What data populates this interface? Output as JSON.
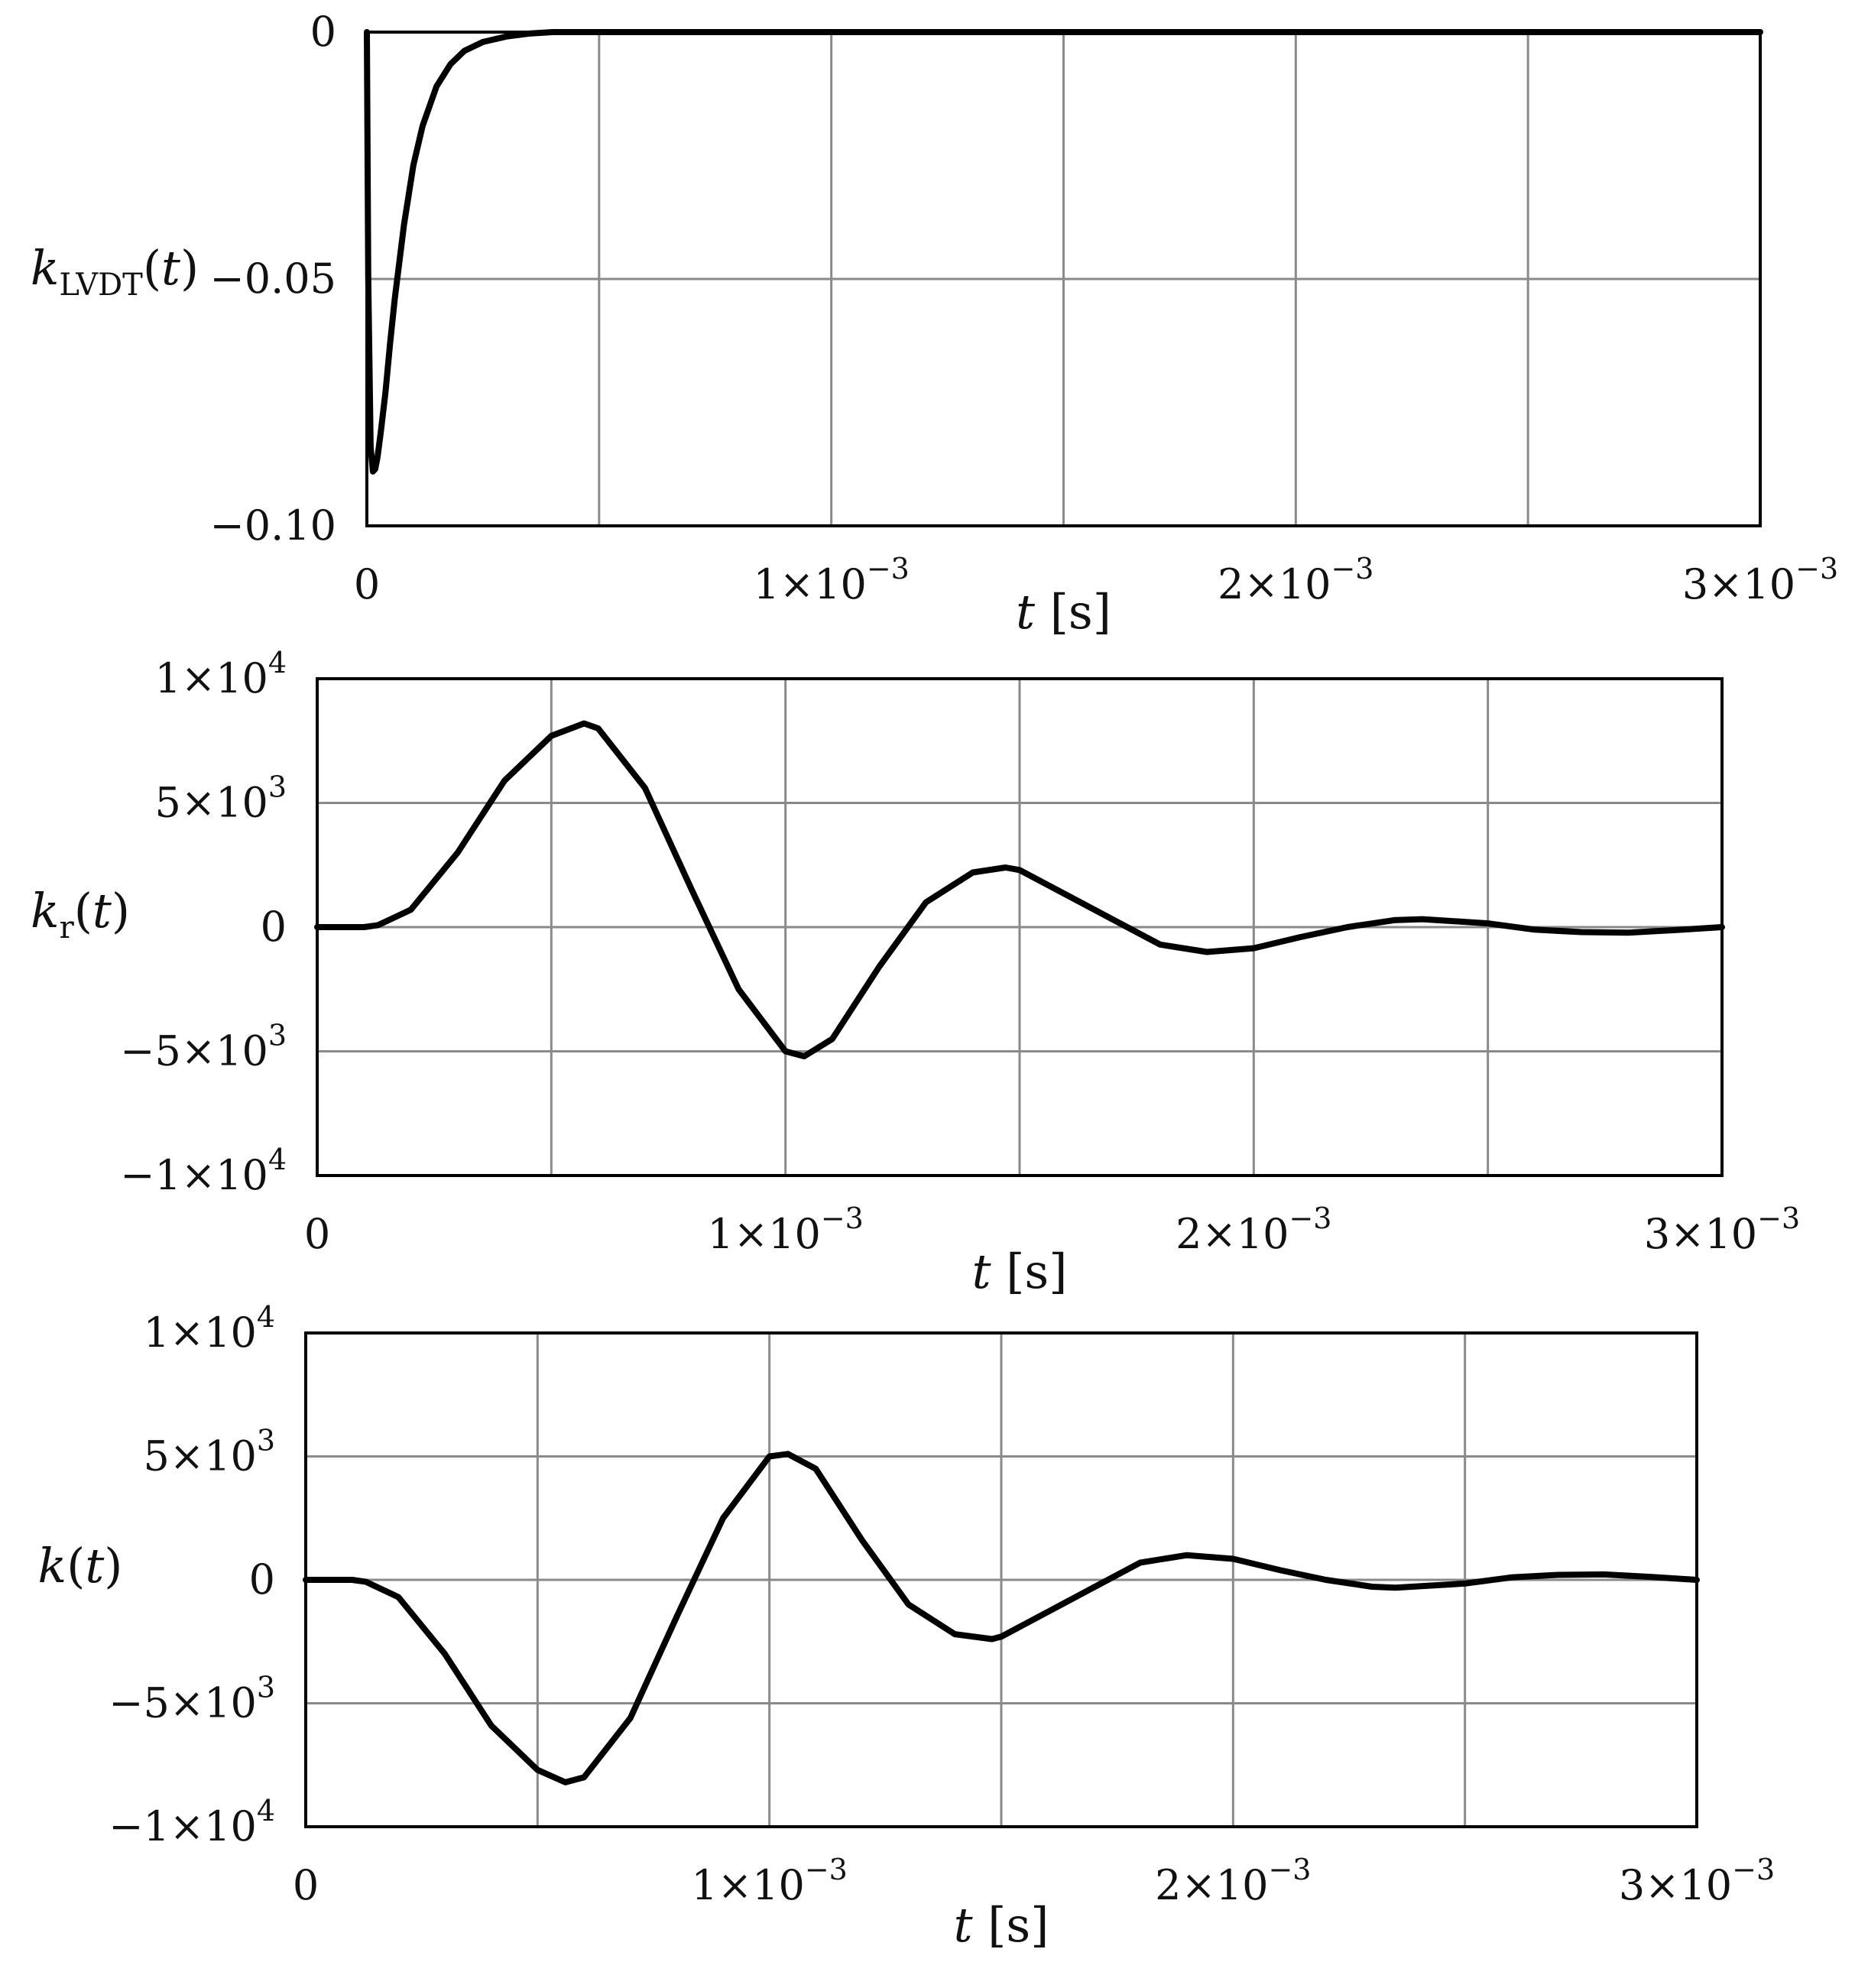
{
  "chart_data": [
    {
      "type": "line",
      "xlabel_var": "t",
      "xlabel_unit": "[s]",
      "ylabel_base": "k",
      "ylabel_sub": "LVDT",
      "ylabel_arg": "(t)",
      "xlim": [
        0,
        0.003
      ],
      "ylim": [
        -0.1,
        0
      ],
      "grid": true,
      "xticks": [
        {
          "value": 0,
          "mant": "0",
          "exp": ""
        },
        {
          "value": 0.001,
          "mant": "1×10",
          "exp": "−3"
        },
        {
          "value": 0.002,
          "mant": "2×10",
          "exp": "−3"
        },
        {
          "value": 0.003,
          "mant": "3×10",
          "exp": "−3"
        }
      ],
      "xgrid": [
        0.0005,
        0.001,
        0.0015,
        0.002,
        0.0025
      ],
      "yticks": [
        {
          "value": 0,
          "mant": "0",
          "exp": ""
        },
        {
          "value": -0.05,
          "mant": "−0.05",
          "exp": ""
        },
        {
          "value": -0.1,
          "mant": "−0.10",
          "exp": ""
        }
      ],
      "ygrid": [
        -0.05
      ],
      "series": [
        {
          "x": [
            0,
            3e-06,
            8e-06,
            1.3e-05,
            1.8e-05,
            2.3e-05,
            3e-05,
            4e-05,
            5e-05,
            6e-05,
            8e-05,
            0.0001,
            0.00012,
            0.00015,
            0.00018,
            0.00021,
            0.00025,
            0.0003,
            0.00035,
            0.0004,
            0.003
          ],
          "y": [
            0,
            -0.05,
            -0.084,
            -0.089,
            -0.0885,
            -0.086,
            -0.081,
            -0.073,
            -0.063,
            -0.054,
            -0.039,
            -0.027,
            -0.019,
            -0.011,
            -0.0065,
            -0.0038,
            -0.002,
            -0.0009,
            -0.0003,
            0,
            0
          ]
        }
      ]
    },
    {
      "type": "line",
      "xlabel_var": "t",
      "xlabel_unit": "[s]",
      "ylabel_base": "k",
      "ylabel_sub": "r",
      "ylabel_arg": "(t)",
      "xlim": [
        0,
        0.003
      ],
      "ylim": [
        -10000,
        10000
      ],
      "grid": true,
      "xticks": [
        {
          "value": 0,
          "mant": "0",
          "exp": ""
        },
        {
          "value": 0.001,
          "mant": "1×10",
          "exp": "−3"
        },
        {
          "value": 0.002,
          "mant": "2×10",
          "exp": "−3"
        },
        {
          "value": 0.003,
          "mant": "3×10",
          "exp": "−3"
        }
      ],
      "xgrid": [
        0.0005,
        0.001,
        0.0015,
        0.002,
        0.0025
      ],
      "yticks": [
        {
          "value": 10000,
          "mant": "1×10",
          "exp": "4"
        },
        {
          "value": 5000,
          "mant": "5×10",
          "exp": "3"
        },
        {
          "value": 0,
          "mant": "0",
          "exp": ""
        },
        {
          "value": -5000,
          "mant": "−5×10",
          "exp": "3"
        },
        {
          "value": -10000,
          "mant": "−1×10",
          "exp": "4"
        }
      ],
      "ygrid": [
        5000,
        0,
        -5000
      ],
      "series": [
        {
          "x": [
            0,
            0.0001,
            0.00013,
            0.0002,
            0.0003,
            0.0004,
            0.0005,
            0.00057,
            0.0006,
            0.0007,
            0.0008,
            0.0009,
            0.001,
            0.00104,
            0.0011,
            0.0012,
            0.0013,
            0.0014,
            0.00147,
            0.0015,
            0.0016,
            0.0017,
            0.0018,
            0.0019,
            0.002,
            0.0021,
            0.0022,
            0.0023,
            0.00236,
            0.0025,
            0.0026,
            0.0027,
            0.0028,
            0.0029,
            0.003
          ],
          "y": [
            0,
            0,
            80,
            700,
            3000,
            5900,
            7700,
            8200,
            8000,
            5600,
            1500,
            -2500,
            -5000,
            -5200,
            -4500,
            -1600,
            1000,
            2200,
            2400,
            2300,
            1300,
            300,
            -700,
            -1000,
            -850,
            -400,
            0,
            280,
            320,
            150,
            -100,
            -200,
            -220,
            -120,
            0
          ]
        }
      ]
    },
    {
      "type": "line",
      "xlabel_var": "t",
      "xlabel_unit": "[s]",
      "ylabel_base": "k",
      "ylabel_sub": "",
      "ylabel_arg": "(t)",
      "xlim": [
        0,
        0.003
      ],
      "ylim": [
        -10000,
        10000
      ],
      "grid": true,
      "xticks": [
        {
          "value": 0,
          "mant": "0",
          "exp": ""
        },
        {
          "value": 0.001,
          "mant": "1×10",
          "exp": "−3"
        },
        {
          "value": 0.002,
          "mant": "2×10",
          "exp": "−3"
        },
        {
          "value": 0.003,
          "mant": "3×10",
          "exp": "−3"
        }
      ],
      "xgrid": [
        0.0005,
        0.001,
        0.0015,
        0.002,
        0.0025
      ],
      "yticks": [
        {
          "value": 10000,
          "mant": "1×10",
          "exp": "4"
        },
        {
          "value": 5000,
          "mant": "5×10",
          "exp": "3"
        },
        {
          "value": 0,
          "mant": "0",
          "exp": ""
        },
        {
          "value": -5000,
          "mant": "−5×10",
          "exp": "3"
        },
        {
          "value": -10000,
          "mant": "−1×10",
          "exp": "4"
        }
      ],
      "ygrid": [
        5000,
        0,
        -5000
      ],
      "series": [
        {
          "x": [
            0,
            0.0001,
            0.00013,
            0.0002,
            0.0003,
            0.0004,
            0.0005,
            0.00056,
            0.0006,
            0.0007,
            0.0008,
            0.0009,
            0.001,
            0.00104,
            0.0011,
            0.0012,
            0.0013,
            0.0014,
            0.00148,
            0.0015,
            0.0016,
            0.0017,
            0.0018,
            0.0019,
            0.002,
            0.0021,
            0.0022,
            0.0023,
            0.00235,
            0.0025,
            0.0026,
            0.0027,
            0.0028,
            0.0029,
            0.003
          ],
          "y": [
            0,
            0,
            -80,
            -700,
            -3000,
            -5900,
            -7700,
            -8200,
            -8000,
            -5600,
            -1500,
            2500,
            5000,
            5100,
            4500,
            1600,
            -1000,
            -2200,
            -2400,
            -2300,
            -1300,
            -300,
            700,
            1000,
            850,
            400,
            0,
            -280,
            -320,
            -150,
            100,
            200,
            220,
            120,
            0
          ]
        }
      ]
    }
  ]
}
